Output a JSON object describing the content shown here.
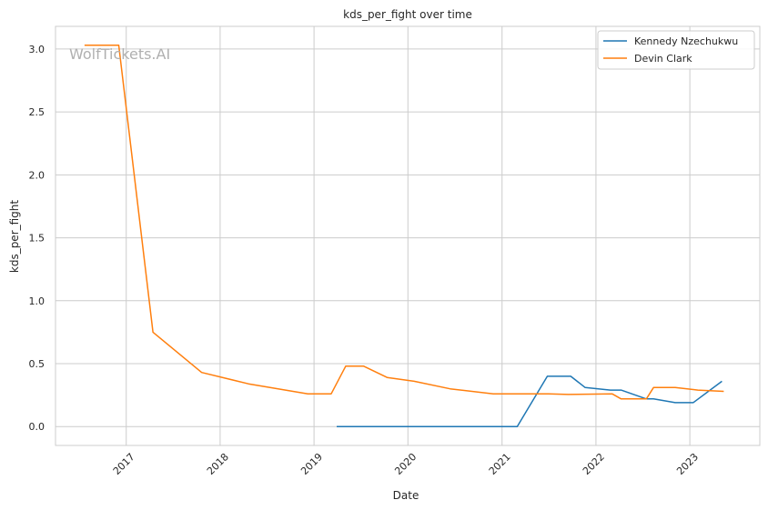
{
  "chart_data": {
    "type": "line",
    "title": "kds_per_fight over time",
    "xlabel": "Date",
    "ylabel": "kds_per_fight",
    "watermark": "WolfTickets.AI",
    "x_ticks": [
      "2017",
      "2018",
      "2019",
      "2020",
      "2021",
      "2022",
      "2023"
    ],
    "y_ticks": [
      "0.0",
      "0.5",
      "1.0",
      "1.5",
      "2.0",
      "2.5",
      "3.0"
    ],
    "xlim": [
      "2016-04-01",
      "2023-09-30"
    ],
    "ylim": [
      -0.15,
      3.18
    ],
    "grid": true,
    "legend_position": "top-right",
    "series": [
      {
        "name": "Kennedy Nzechukwu",
        "color": "#1f77b4",
        "points": [
          [
            "2019-03-30",
            0.0
          ],
          [
            "2021-03-01",
            0.0
          ],
          [
            "2021-06-26",
            0.4
          ],
          [
            "2021-09-25",
            0.4
          ],
          [
            "2021-11-20",
            0.31
          ],
          [
            "2022-02-26",
            0.29
          ],
          [
            "2022-04-09",
            0.29
          ],
          [
            "2022-07-16",
            0.22
          ],
          [
            "2022-08-13",
            0.22
          ],
          [
            "2022-11-05",
            0.19
          ],
          [
            "2023-01-14",
            0.19
          ],
          [
            "2023-05-06",
            0.36
          ]
        ]
      },
      {
        "name": "Devin Clark",
        "color": "#ff7f0e",
        "points": [
          [
            "2016-07-23",
            3.03
          ],
          [
            "2016-12-03",
            3.03
          ],
          [
            "2017-04-15",
            0.75
          ],
          [
            "2017-10-21",
            0.43
          ],
          [
            "2018-04-21",
            0.34
          ],
          [
            "2018-12-08",
            0.26
          ],
          [
            "2019-03-09",
            0.26
          ],
          [
            "2019-05-04",
            0.48
          ],
          [
            "2019-07-13",
            0.48
          ],
          [
            "2019-10-12",
            0.39
          ],
          [
            "2020-01-25",
            0.36
          ],
          [
            "2020-06-13",
            0.3
          ],
          [
            "2020-11-28",
            0.26
          ],
          [
            "2021-07-01",
            0.26
          ],
          [
            "2021-09-15",
            0.255
          ],
          [
            "2022-03-05",
            0.26
          ],
          [
            "2022-04-09",
            0.22
          ],
          [
            "2022-07-16",
            0.22
          ],
          [
            "2022-08-13",
            0.31
          ],
          [
            "2022-11-05",
            0.31
          ],
          [
            "2023-02-01",
            0.29
          ],
          [
            "2023-05-13",
            0.28
          ]
        ]
      }
    ]
  }
}
